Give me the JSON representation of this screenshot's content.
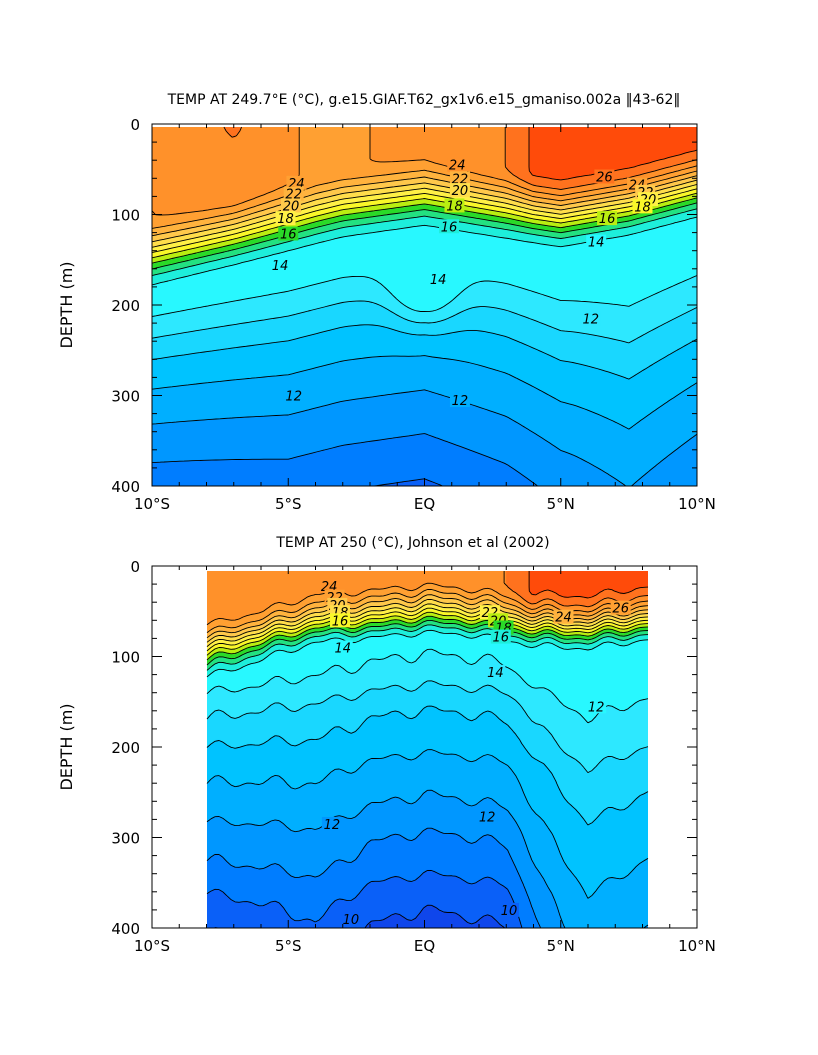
{
  "chart_data": [
    {
      "type": "heatmap",
      "title": "TEMP AT 249.7°E (°C), g.e15.GIAF.T62_gx1v6.e15_gmaniso.002a ‖43-62‖",
      "xlabel": "",
      "ylabel": "DEPTH (m)",
      "x_ticks": [
        "10°S",
        "5°S",
        "EQ",
        "5°N",
        "10°N"
      ],
      "x_tick_values": [
        -10,
        -5,
        0,
        5,
        10
      ],
      "y_ticks": [
        "0",
        "100",
        "200",
        "300",
        "400"
      ],
      "y_tick_values": [
        0,
        100,
        200,
        300,
        400
      ],
      "xlim": [
        -10,
        10
      ],
      "ylim": [
        400,
        0
      ],
      "data_xlim": [
        -10,
        10
      ],
      "contour_levels": [
        10,
        10.5,
        11,
        11.5,
        12,
        12.5,
        13,
        13.5,
        14,
        15,
        16,
        17,
        18,
        19,
        20,
        21,
        22,
        23,
        24,
        25,
        26,
        27
      ],
      "contour_labels": [
        {
          "text": "24",
          "x": -4.7,
          "y": 65
        },
        {
          "text": "22",
          "x": -4.8,
          "y": 77
        },
        {
          "text": "20",
          "x": -4.9,
          "y": 90
        },
        {
          "text": "18",
          "x": -5.1,
          "y": 104
        },
        {
          "text": "16",
          "x": -5.0,
          "y": 121
        },
        {
          "text": "14",
          "x": -5.3,
          "y": 156
        },
        {
          "text": "24",
          "x": 1.2,
          "y": 45
        },
        {
          "text": "22",
          "x": 1.3,
          "y": 60
        },
        {
          "text": "20",
          "x": 1.3,
          "y": 73
        },
        {
          "text": "18",
          "x": 1.1,
          "y": 90
        },
        {
          "text": "16",
          "x": 0.9,
          "y": 113
        },
        {
          "text": "14",
          "x": 0.5,
          "y": 171
        },
        {
          "text": "26",
          "x": 6.6,
          "y": 58
        },
        {
          "text": "24",
          "x": 7.8,
          "y": 67
        },
        {
          "text": "22",
          "x": 8.1,
          "y": 75
        },
        {
          "text": "20",
          "x": 8.2,
          "y": 83
        },
        {
          "text": "18",
          "x": 8.0,
          "y": 91
        },
        {
          "text": "16",
          "x": 6.7,
          "y": 104
        },
        {
          "text": "14",
          "x": 6.3,
          "y": 130
        },
        {
          "text": "12",
          "x": 6.1,
          "y": 215
        },
        {
          "text": "12",
          "x": -4.8,
          "y": 300
        },
        {
          "text": "12",
          "x": 1.3,
          "y": 305
        }
      ],
      "grid": false,
      "legend": "none"
    },
    {
      "type": "heatmap",
      "title": "TEMP AT 250 (°C), Johnson et al (2002)",
      "xlabel": "",
      "ylabel": "DEPTH (m)",
      "x_ticks": [
        "10°S",
        "5°S",
        "EQ",
        "5°N",
        "10°N"
      ],
      "x_tick_values": [
        -10,
        -5,
        0,
        5,
        10
      ],
      "y_ticks": [
        "0",
        "100",
        "200",
        "300",
        "400"
      ],
      "y_tick_values": [
        0,
        100,
        200,
        300,
        400
      ],
      "xlim": [
        -10,
        10
      ],
      "ylim": [
        400,
        0
      ],
      "data_xlim": [
        -8,
        8.2
      ],
      "data_ylim": [
        5,
        400
      ],
      "contour_levels": [
        10,
        10.5,
        11,
        11.5,
        12,
        12.5,
        13,
        13.5,
        14,
        15,
        16,
        17,
        18,
        19,
        20,
        21,
        22,
        23,
        24,
        25,
        26,
        27
      ],
      "contour_labels": [
        {
          "text": "24",
          "x": -3.5,
          "y": 22
        },
        {
          "text": "22",
          "x": -3.3,
          "y": 34
        },
        {
          "text": "20",
          "x": -3.2,
          "y": 43
        },
        {
          "text": "18",
          "x": -3.1,
          "y": 51
        },
        {
          "text": "16",
          "x": -3.1,
          "y": 60
        },
        {
          "text": "14",
          "x": -3.0,
          "y": 90
        },
        {
          "text": "22",
          "x": 2.4,
          "y": 51
        },
        {
          "text": "20",
          "x": 2.7,
          "y": 60
        },
        {
          "text": "18",
          "x": 2.9,
          "y": 68
        },
        {
          "text": "16",
          "x": 2.8,
          "y": 78
        },
        {
          "text": "14",
          "x": 2.6,
          "y": 117
        },
        {
          "text": "24",
          "x": 5.1,
          "y": 56
        },
        {
          "text": "26",
          "x": 7.2,
          "y": 46
        },
        {
          "text": "12",
          "x": 6.3,
          "y": 155
        },
        {
          "text": "12",
          "x": -3.4,
          "y": 285
        },
        {
          "text": "12",
          "x": 2.3,
          "y": 277
        },
        {
          "text": "10",
          "x": -2.7,
          "y": 390
        },
        {
          "text": "10",
          "x": 3.1,
          "y": 380
        }
      ],
      "grid": false,
      "legend": "none"
    }
  ]
}
